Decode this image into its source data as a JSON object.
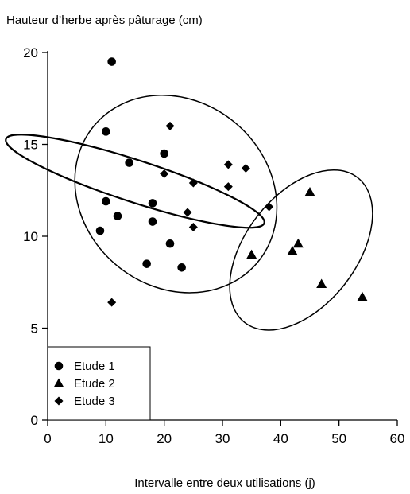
{
  "chart_data": {
    "type": "scatter",
    "title": "",
    "ylabel": "Hauteur d’herbe après pâturage (cm)",
    "xlabel": "Intervalle entre deux utilisations (j)",
    "xlim": [
      0,
      60
    ],
    "ylim": [
      0,
      20
    ],
    "x_ticks": [
      0,
      10,
      20,
      30,
      40,
      50,
      60
    ],
    "y_ticks": [
      0,
      5,
      10,
      15,
      20
    ],
    "grid": false,
    "legend": {
      "placement": "bottom-left"
    },
    "series": [
      {
        "name": "Etude 1",
        "marker": "circle",
        "points": [
          [
            11,
            19.5
          ],
          [
            10,
            15.7
          ],
          [
            14,
            14.0
          ],
          [
            20,
            14.5
          ],
          [
            10,
            11.9
          ],
          [
            12,
            11.1
          ],
          [
            18,
            11.8
          ],
          [
            18,
            10.8
          ],
          [
            9,
            10.3
          ],
          [
            21,
            9.6
          ],
          [
            17,
            8.5
          ],
          [
            23,
            8.3
          ]
        ]
      },
      {
        "name": "Etude 2",
        "marker": "triangle",
        "points": [
          [
            45,
            12.4
          ],
          [
            35,
            9.0
          ],
          [
            43,
            9.6
          ],
          [
            42,
            9.2
          ],
          [
            47,
            7.4
          ],
          [
            54,
            6.7
          ]
        ]
      },
      {
        "name": "Etude 3",
        "marker": "diamond",
        "points": [
          [
            21,
            16.0
          ],
          [
            20,
            13.4
          ],
          [
            25,
            12.9
          ],
          [
            31,
            13.9
          ],
          [
            34,
            13.7
          ],
          [
            31,
            12.7
          ],
          [
            24,
            11.3
          ],
          [
            25,
            10.5
          ],
          [
            38,
            11.6
          ],
          [
            11,
            6.4
          ]
        ]
      }
    ],
    "ellipses": [
      {
        "cx": 15,
        "cy": 13.0,
        "rx": 3.6,
        "ry": 7.4,
        "angle": -72,
        "stroke_width": 2.2
      },
      {
        "cx": 22,
        "cy": 12.3,
        "rx": 15.9,
        "ry": 5.8,
        "angle": -50,
        "stroke_width": 1.5
      },
      {
        "cx": 43.5,
        "cy": 9.25,
        "rx": 9.5,
        "ry": 5.0,
        "angle": 38,
        "stroke_width": 1.5
      }
    ]
  }
}
